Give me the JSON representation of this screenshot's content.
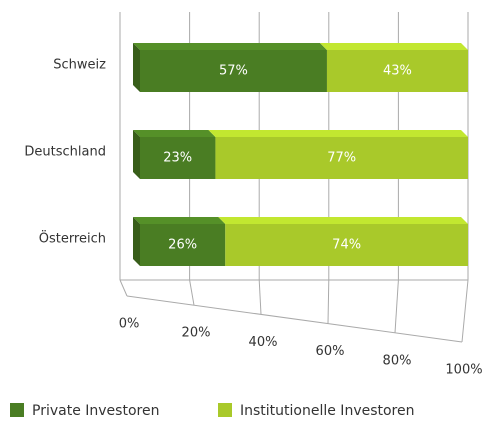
{
  "chart_data": {
    "type": "stacked-bar-3d",
    "categories": [
      "Schweiz",
      "Deutschland",
      "Österreich"
    ],
    "series": [
      {
        "name": "Private Investoren",
        "color": "#4a7d23",
        "values": [
          57,
          23,
          26
        ],
        "value_labels": [
          "57%",
          "23%",
          "26%"
        ]
      },
      {
        "name": "Institutionelle Investoren",
        "color": "#a9c92a",
        "values": [
          43,
          77,
          74
        ],
        "value_labels": [
          "43%",
          "77%",
          "74%"
        ]
      }
    ],
    "xlim": [
      0,
      100
    ],
    "xticks": [
      {
        "value": 0,
        "label": "0%"
      },
      {
        "value": 20,
        "label": "20%"
      },
      {
        "value": 40,
        "label": "40%"
      },
      {
        "value": 60,
        "label": "60%"
      },
      {
        "value": 80,
        "label": "80%"
      },
      {
        "value": 100,
        "label": "100%"
      }
    ],
    "grid": true
  }
}
